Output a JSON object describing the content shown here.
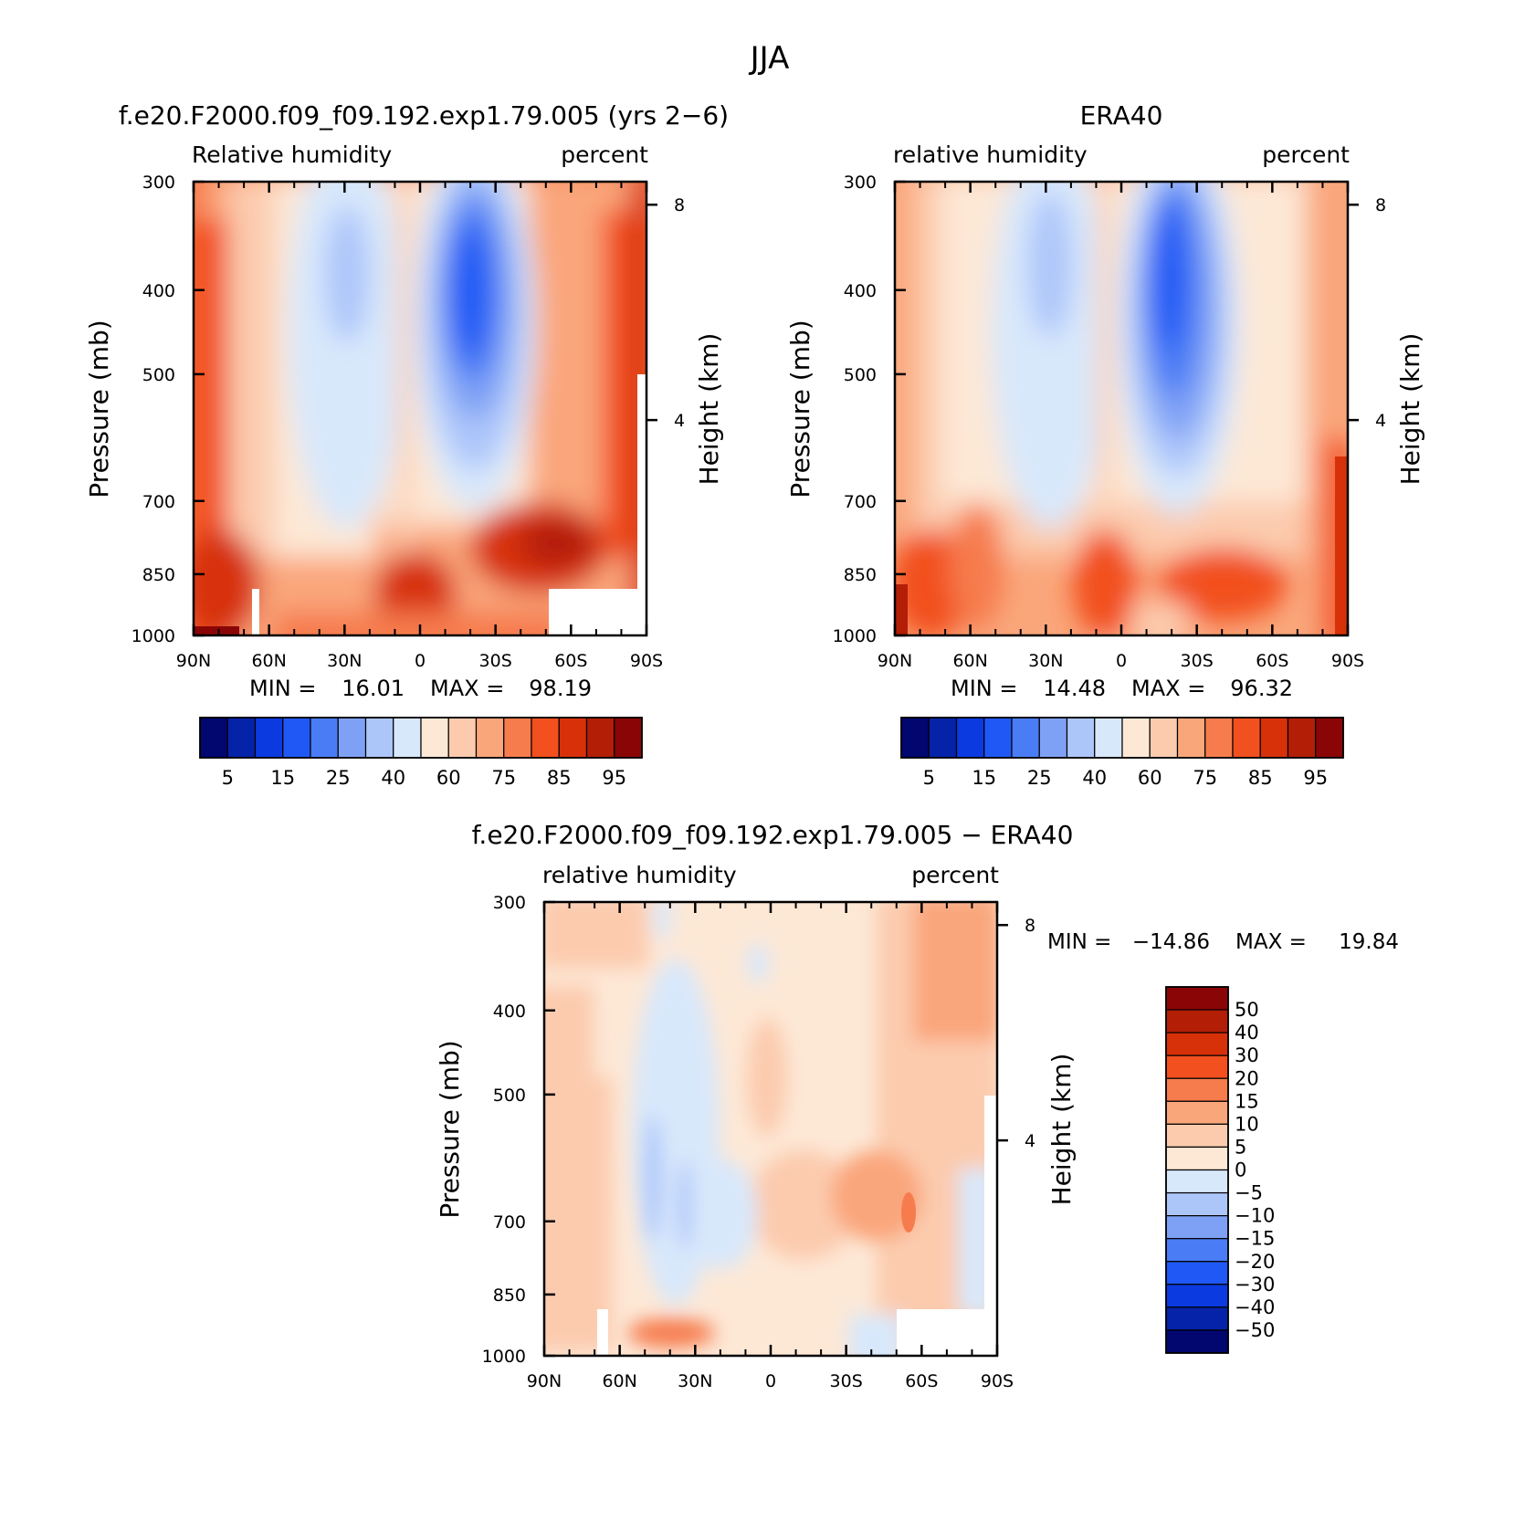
{
  "chart_data": {
    "type": "heatmap",
    "title": "JJA",
    "x_ticks": [
      "90N",
      "60N",
      "30N",
      "0",
      "30S",
      "60S",
      "90S"
    ],
    "y_ticks": [
      "300",
      "400",
      "500",
      "700",
      "850",
      "1000"
    ],
    "ylabel": "Pressure (mb)",
    "y2label": "Height (km)",
    "y2_ticks": [
      "8",
      "4"
    ],
    "panels": [
      {
        "title": "f.e20.F2000.f09_f09.192.exp1.79.005 (yrs 2−6)",
        "left_label": "Relative humidity",
        "right_label": "percent",
        "min_label": "MIN =",
        "min_value": "16.01",
        "max_label": "MAX =",
        "max_value": "98.19",
        "colorbar_labels": [
          "5",
          "15",
          "25",
          "40",
          "60",
          "75",
          "85",
          "95"
        ]
      },
      {
        "title": "ERA40",
        "left_label": "relative humidity",
        "right_label": "percent",
        "min_label": "MIN =",
        "min_value": "14.48",
        "max_label": "MAX =",
        "max_value": "96.32",
        "colorbar_labels": [
          "5",
          "15",
          "25",
          "40",
          "60",
          "75",
          "85",
          "95"
        ]
      },
      {
        "title": "f.e20.F2000.f09_f09.192.exp1.79.005 − ERA40",
        "left_label": "relative humidity",
        "right_label": "percent",
        "min_label": "MIN =",
        "min_value": "−14.86",
        "max_label": "MAX =",
        "max_value": "19.84",
        "colorbar_labels": [
          "50",
          "40",
          "30",
          "20",
          "15",
          "10",
          "5",
          "0",
          "−5",
          "−10",
          "−15",
          "−20",
          "−30",
          "−40",
          "−50"
        ]
      }
    ],
    "abs_colors": [
      "#02066f",
      "#0523a8",
      "#0a3ae0",
      "#1f58f5",
      "#4a7cf5",
      "#7fa1f5",
      "#adc6fa",
      "#d8e8fb",
      "#fde8d6",
      "#fccbae",
      "#faa67b",
      "#f67c4d",
      "#f2501f",
      "#d7310a",
      "#b31e07",
      "#8a0606"
    ],
    "diff_colors": [
      "#8a0606",
      "#b31e07",
      "#d7310a",
      "#f2501f",
      "#f67c4d",
      "#faa67b",
      "#fccbae",
      "#fde8d6",
      "#d8e8fb",
      "#adc6fa",
      "#7fa1f5",
      "#4a7cf5",
      "#1f58f5",
      "#0a3ae0",
      "#0523a8",
      "#02066f"
    ]
  }
}
